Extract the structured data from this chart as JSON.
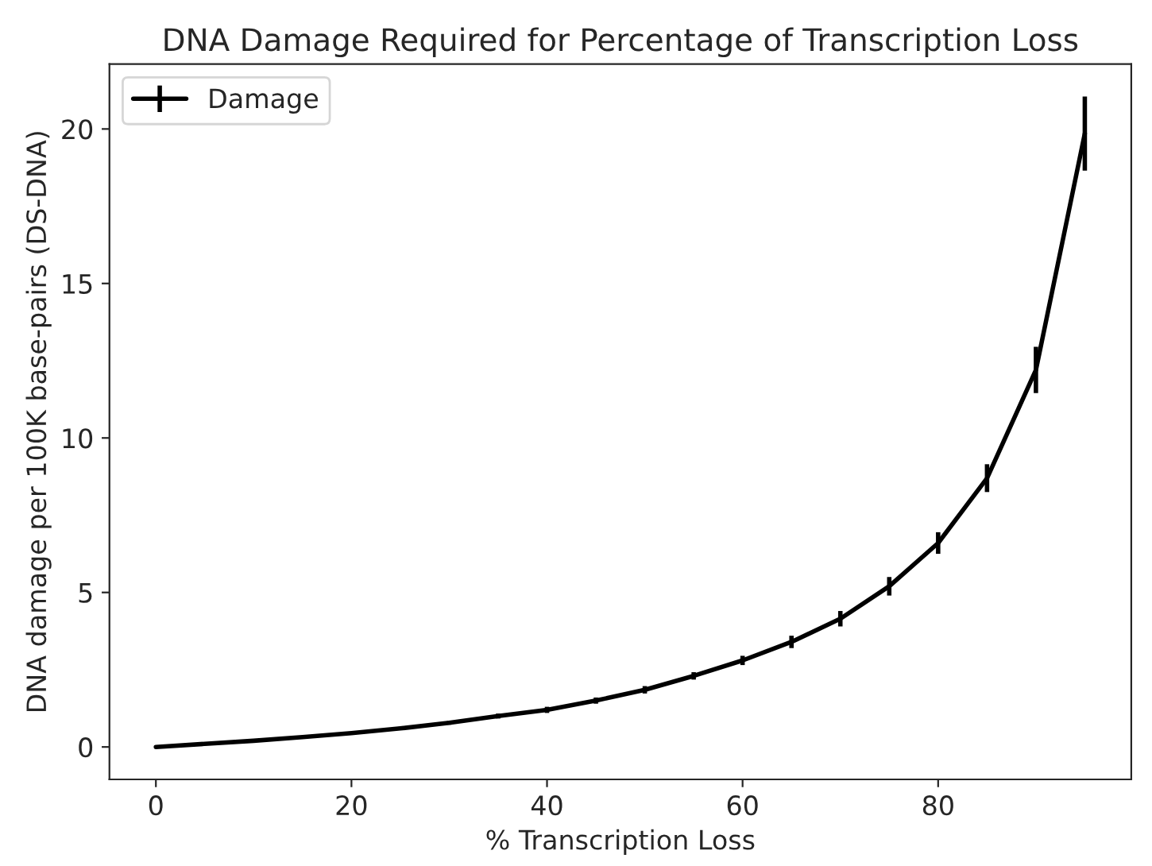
{
  "chart_data": {
    "type": "line",
    "title": "DNA Damage Required for Percentage of Transcription Loss",
    "xlabel": "% Transcription Loss",
    "ylabel": "DNA damage per 100K base-pairs (DS-DNA)",
    "x": [
      0,
      5,
      10,
      15,
      20,
      25,
      30,
      35,
      40,
      45,
      50,
      55,
      60,
      65,
      70,
      75,
      80,
      85,
      90,
      95
    ],
    "series": [
      {
        "name": "Damage",
        "color": "#000000",
        "values": [
          0,
          0.1,
          0.2,
          0.32,
          0.45,
          0.6,
          0.78,
          1.0,
          1.2,
          1.5,
          1.85,
          2.3,
          2.8,
          3.4,
          4.15,
          5.2,
          6.6,
          8.7,
          12.2,
          19.85
        ],
        "errors": [
          null,
          null,
          null,
          null,
          null,
          0.05,
          0.06,
          0.08,
          0.1,
          0.1,
          0.12,
          0.12,
          0.15,
          0.2,
          0.25,
          0.3,
          0.35,
          0.45,
          0.75,
          1.2
        ]
      }
    ],
    "xlim": [
      -4.75,
      99.75
    ],
    "ylim": [
      -1.05,
      22.1
    ],
    "xticks": [
      0,
      20,
      40,
      60,
      80
    ],
    "yticks": [
      0,
      5,
      10,
      15,
      20
    ],
    "legend": "top left",
    "grid": false,
    "marker": "none",
    "line_style": "solid"
  }
}
